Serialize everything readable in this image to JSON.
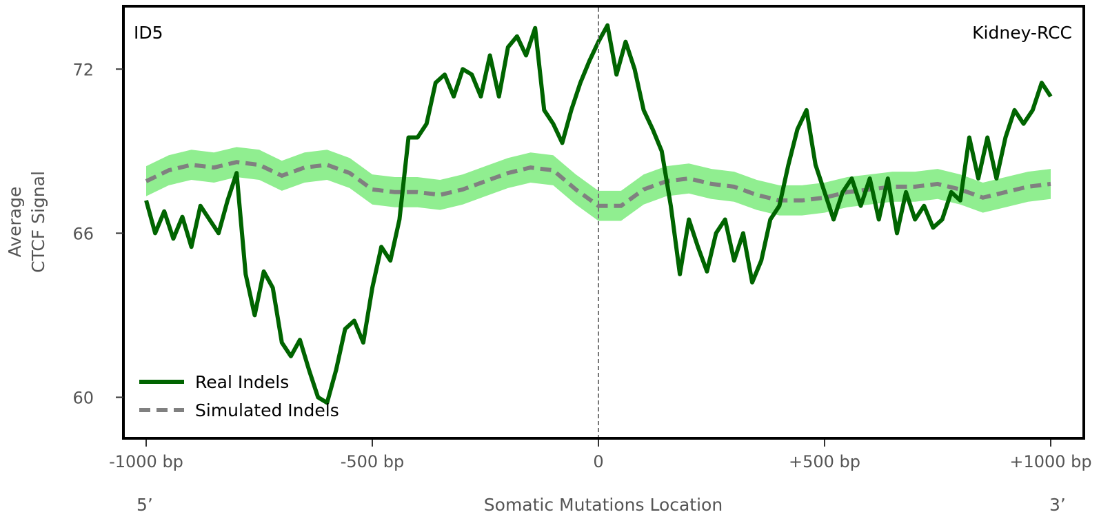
{
  "chart_data": {
    "type": "line",
    "panel_label": "ID5",
    "tissue_label": "Kidney-RCC",
    "xlabel": "Somatic Mutations Location",
    "ylabel_line1": "Average",
    "ylabel_line2": "CTCF Signal",
    "x_end_left": "5’",
    "x_end_right": "3’",
    "xlim": [
      -1000,
      1000
    ],
    "ylim": [
      58.5,
      74.3
    ],
    "x_ticks": [
      {
        "value": -1000,
        "label": "-1000 bp"
      },
      {
        "value": -500,
        "label": "-500 bp"
      },
      {
        "value": 0,
        "label": "0"
      },
      {
        "value": 500,
        "label": "+500 bp"
      },
      {
        "value": 1000,
        "label": "+1000 bp"
      }
    ],
    "y_ticks": [
      {
        "value": 60,
        "label": "60"
      },
      {
        "value": 66,
        "label": "66"
      },
      {
        "value": 72,
        "label": "72"
      }
    ],
    "center_line": 0,
    "legend": {
      "placement": "bottom-left"
    },
    "series": [
      {
        "name": "Real Indels",
        "style": "solid",
        "color": "#006400",
        "x": [
          -1000,
          -980,
          -960,
          -940,
          -920,
          -900,
          -880,
          -860,
          -840,
          -820,
          -800,
          -780,
          -760,
          -740,
          -720,
          -700,
          -680,
          -660,
          -640,
          -620,
          -600,
          -580,
          -560,
          -540,
          -520,
          -500,
          -480,
          -460,
          -440,
          -420,
          -400,
          -380,
          -360,
          -340,
          -320,
          -300,
          -280,
          -260,
          -240,
          -220,
          -200,
          -180,
          -160,
          -140,
          -120,
          -100,
          -80,
          -60,
          -40,
          -20,
          0,
          20,
          40,
          60,
          80,
          100,
          120,
          140,
          160,
          180,
          200,
          220,
          240,
          260,
          280,
          300,
          320,
          340,
          360,
          380,
          400,
          420,
          440,
          460,
          480,
          500,
          520,
          540,
          560,
          580,
          600,
          620,
          640,
          660,
          680,
          700,
          720,
          740,
          760,
          780,
          800,
          820,
          840,
          860,
          880,
          900,
          920,
          940,
          960,
          980,
          1000
        ],
        "y": [
          67.2,
          66.0,
          66.8,
          65.8,
          66.6,
          65.5,
          67.0,
          66.5,
          66.0,
          67.2,
          68.2,
          64.5,
          63.0,
          64.6,
          64.0,
          62.0,
          61.5,
          62.1,
          61.0,
          60.0,
          59.8,
          61.0,
          62.5,
          62.8,
          62.0,
          64.0,
          65.5,
          65.0,
          66.5,
          69.5,
          69.5,
          70.0,
          71.5,
          71.8,
          71.0,
          72.0,
          71.8,
          71.0,
          72.5,
          71.0,
          72.8,
          73.2,
          72.5,
          73.5,
          70.5,
          70.0,
          69.3,
          70.5,
          71.5,
          72.3,
          73.0,
          73.6,
          71.8,
          73.0,
          72.0,
          70.5,
          69.8,
          69.0,
          67.0,
          64.5,
          66.5,
          65.5,
          64.6,
          66.0,
          66.5,
          65.0,
          66.0,
          64.2,
          65.0,
          66.5,
          67.0,
          68.5,
          69.8,
          70.5,
          68.5,
          67.5,
          66.5,
          67.5,
          68.0,
          67.0,
          68.0,
          66.5,
          68.0,
          66.0,
          67.5,
          66.5,
          67.0,
          66.2,
          66.5,
          67.5,
          67.2,
          69.5,
          68.0,
          69.5,
          68.0,
          69.5,
          70.5,
          70.0,
          70.5,
          71.5,
          71.0
        ]
      },
      {
        "name": "Simulated Indels",
        "style": "dashed",
        "color": "#808080",
        "band_color": "#90EE90",
        "band_halfwidth": 0.55,
        "x": [
          -1000,
          -950,
          -900,
          -850,
          -800,
          -750,
          -700,
          -650,
          -600,
          -550,
          -500,
          -450,
          -400,
          -350,
          -300,
          -250,
          -200,
          -150,
          -100,
          -50,
          0,
          50,
          100,
          150,
          200,
          250,
          300,
          350,
          400,
          450,
          500,
          550,
          600,
          650,
          700,
          750,
          800,
          850,
          900,
          950,
          1000
        ],
        "y": [
          67.9,
          68.3,
          68.5,
          68.4,
          68.6,
          68.5,
          68.1,
          68.4,
          68.5,
          68.2,
          67.6,
          67.5,
          67.5,
          67.4,
          67.6,
          67.9,
          68.2,
          68.4,
          68.3,
          67.6,
          67.0,
          67.0,
          67.6,
          67.9,
          68.0,
          67.8,
          67.7,
          67.4,
          67.2,
          67.2,
          67.3,
          67.5,
          67.6,
          67.7,
          67.7,
          67.8,
          67.6,
          67.3,
          67.5,
          67.7,
          67.8
        ]
      }
    ]
  }
}
